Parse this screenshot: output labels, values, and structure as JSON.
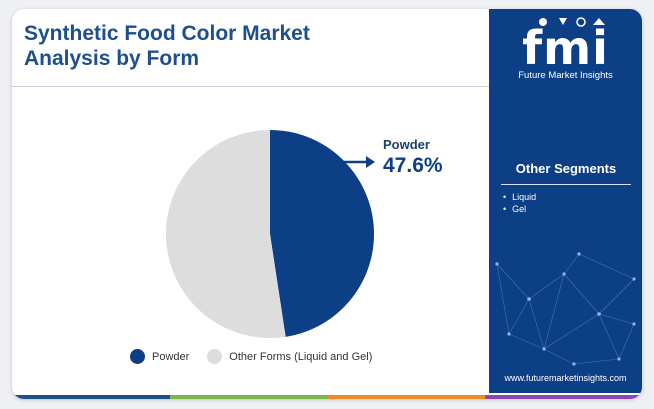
{
  "header": {
    "title_line1": "Synthetic Food Color Market",
    "title_line2": "Analysis by Form"
  },
  "brand": {
    "logo_text": "fmi",
    "name": "Future Market Insights",
    "website": "www.futuremarketinsights.com"
  },
  "other_segments": {
    "title": "Other Segments",
    "items": [
      "Liquid",
      "Gel"
    ]
  },
  "callout": {
    "label": "Powder",
    "value": "47.6%"
  },
  "colors": {
    "title": "#1d4f8f",
    "powder": "#0d3f86",
    "other": "#dddddd",
    "side_panel": "#0d3f86",
    "bottom_bar": [
      "#1d4f8f",
      "#7ab648",
      "#f08a24",
      "#8e44ad"
    ]
  },
  "chart_data": {
    "type": "pie",
    "title": "Synthetic Food Color Market Analysis by Form",
    "categories": [
      "Powder",
      "Other Forms (Liquid and Gel)"
    ],
    "values": [
      47.6,
      52.4
    ],
    "unit": "%",
    "legend": "bottom",
    "colors": [
      "#0d3f86",
      "#dddddd"
    ]
  }
}
